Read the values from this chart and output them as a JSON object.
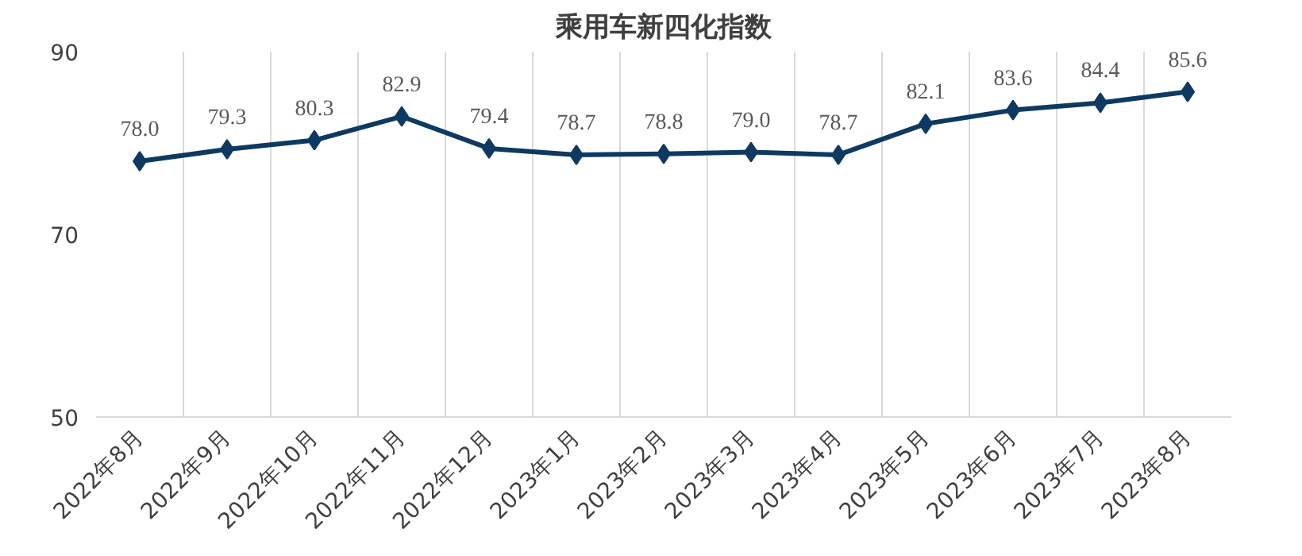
{
  "chart_data": {
    "type": "line",
    "title": "乘用车新四化指数",
    "categories": [
      "2022年8月",
      "2022年9月",
      "2022年10月",
      "2022年11月",
      "2022年12月",
      "2023年1月",
      "2023年2月",
      "2023年3月",
      "2023年4月",
      "2023年5月",
      "2023年6月",
      "2023年7月",
      "2023年8月"
    ],
    "series": [
      {
        "color": "#0e3a61",
        "values": [
          78.0,
          79.3,
          80.3,
          82.9,
          79.4,
          78.7,
          78.8,
          79.0,
          78.7,
          82.1,
          83.6,
          84.4,
          85.6
        ],
        "value_labels": [
          "78.0",
          "79.3",
          "80.3",
          "82.9",
          "79.4",
          "78.7",
          "78.8",
          "79.0",
          "78.7",
          "82.1",
          "83.6",
          "84.4",
          "85.6"
        ]
      }
    ],
    "ylim": [
      50,
      90
    ],
    "yticks": [
      50,
      70,
      90
    ],
    "grid": "x",
    "marker": "diamond",
    "line_style": "solid"
  }
}
